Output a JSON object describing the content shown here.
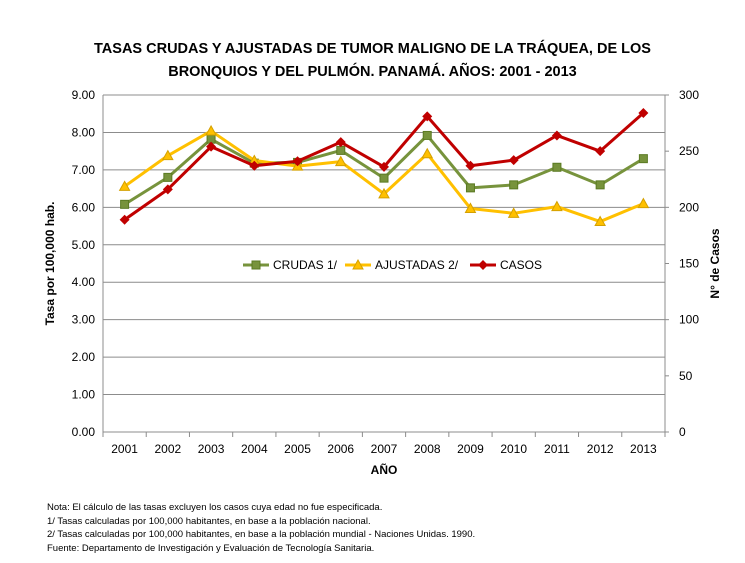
{
  "title": {
    "line1": "TASAS CRUDAS Y AJUSTADAS DE TUMOR MALIGNO DE LA TRÁQUEA, DE LOS",
    "line2": "BRONQUIOS Y DEL PULMÓN.  PANAMÁ.  AÑOS: 2001 - 2013"
  },
  "chart_data": {
    "type": "line",
    "xlabel": "AÑO",
    "ylabel": "Tasa por 100,000 hab.",
    "y2label": "N° de Casos",
    "categories": [
      "2001",
      "2002",
      "2003",
      "2004",
      "2005",
      "2006",
      "2007",
      "2008",
      "2009",
      "2010",
      "2011",
      "2012",
      "2013"
    ],
    "ylim": [
      0,
      9
    ],
    "y2lim": [
      0,
      300
    ],
    "yticks": [
      "0.00",
      "1.00",
      "2.00",
      "3.00",
      "4.00",
      "5.00",
      "6.00",
      "7.00",
      "8.00",
      "9.00"
    ],
    "y2ticks": [
      "0",
      "50",
      "100",
      "150",
      "200",
      "250",
      "300"
    ],
    "grid": true,
    "legend_position": "center",
    "series": [
      {
        "name": "CRUDAS 1/",
        "axis": "left",
        "color": "#77933C",
        "marker": "square",
        "values": [
          6.08,
          6.8,
          7.82,
          7.18,
          7.2,
          7.52,
          6.78,
          7.92,
          6.52,
          6.6,
          7.07,
          6.6,
          7.3
        ]
      },
      {
        "name": "AJUSTADAS 2/",
        "axis": "left",
        "color": "#FFC000",
        "marker": "triangle",
        "values": [
          6.56,
          7.38,
          8.04,
          7.25,
          7.1,
          7.22,
          6.36,
          7.43,
          5.97,
          5.84,
          6.02,
          5.62,
          6.1
        ]
      },
      {
        "name": "CASOS",
        "axis": "right",
        "color": "#C00000",
        "marker": "diamond",
        "values": [
          189,
          216,
          254,
          237,
          241,
          258,
          236,
          281,
          237,
          242,
          264,
          250,
          284
        ]
      }
    ]
  },
  "notes": [
    "Nota: El cálculo de las tasas excluyen los casos cuya edad no fue especificada.",
    "1/ Tasas calculadas por 100,000  habitantes, en base a la población nacional.",
    "2/ Tasas calculadas por 100,000 habitantes, en base a la población mundial - Naciones Unidas. 1990.",
    "Fuente: Departamento de Investigación y Evaluación de Tecnología Sanitaria."
  ]
}
